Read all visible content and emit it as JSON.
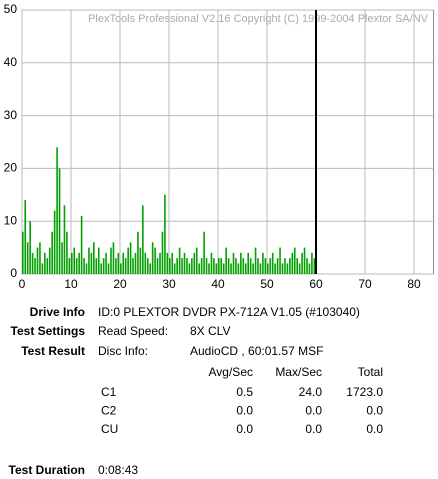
{
  "chart_data": {
    "type": "bar",
    "title": "PlexTools Professional V2.16 Copyright (C) 1999-2004 Plextor SA/NV",
    "x": [
      0,
      0.5,
      1,
      1.5,
      2,
      2.5,
      3,
      3.5,
      4,
      4.5,
      5,
      5.5,
      6,
      6.5,
      7,
      7.5,
      8,
      8.5,
      9,
      9.5,
      10,
      10.5,
      11,
      11.5,
      12,
      12.5,
      13,
      13.5,
      14,
      14.5,
      15,
      15.5,
      16,
      16.5,
      17,
      17.5,
      18,
      18.5,
      19,
      19.5,
      20,
      20.5,
      21,
      21.5,
      22,
      22.5,
      23,
      23.5,
      24,
      24.5,
      25,
      25.5,
      26,
      26.5,
      27,
      27.5,
      28,
      28.5,
      29,
      29.5,
      30,
      30.5,
      31,
      31.5,
      32,
      32.5,
      33,
      33.5,
      34,
      34.5,
      35,
      35.5,
      36,
      36.5,
      37,
      37.5,
      38,
      38.5,
      39,
      39.5,
      40,
      40.5,
      41,
      41.5,
      42,
      42.5,
      43,
      43.5,
      44,
      44.5,
      45,
      45.5,
      46,
      46.5,
      47,
      47.5,
      48,
      48.5,
      49,
      49.5,
      50,
      50.5,
      51,
      51.5,
      52,
      52.5,
      53,
      53.5,
      54,
      54.5,
      55,
      55.5,
      56,
      56.5,
      57,
      57.5,
      58,
      58.5,
      59,
      59.5
    ],
    "values": [
      8,
      14,
      6,
      10,
      4,
      3,
      5,
      6,
      2,
      4,
      3,
      5,
      8,
      12,
      24,
      20,
      6,
      13,
      8,
      3,
      4,
      5,
      3,
      4,
      11,
      3,
      2,
      5,
      4,
      6,
      3,
      5,
      2,
      3,
      4,
      2,
      5,
      6,
      3,
      4,
      2,
      4,
      3,
      5,
      6,
      3,
      4,
      8,
      5,
      13,
      4,
      3,
      2,
      6,
      5,
      3,
      4,
      8,
      15,
      4,
      3,
      4,
      2,
      3,
      5,
      3,
      4,
      3,
      2,
      3,
      4,
      5,
      2,
      3,
      8,
      3,
      2,
      4,
      3,
      2,
      3,
      3,
      2,
      5,
      3,
      2,
      4,
      3,
      2,
      4,
      3,
      2,
      4,
      3,
      2,
      5,
      3,
      2,
      4,
      3,
      2,
      3,
      4,
      2,
      3,
      5,
      2,
      3,
      2,
      3,
      4,
      5,
      3,
      2,
      4,
      5,
      3,
      2,
      4,
      3
    ],
    "color": "#00a000",
    "xlim": [
      0,
      84
    ],
    "ylim": [
      0,
      50
    ],
    "xticks": [
      0,
      10,
      20,
      30,
      40,
      50,
      60,
      70,
      80
    ],
    "yticks": [
      0,
      10,
      20,
      30,
      40,
      50
    ],
    "grid": true,
    "marker_x": 60
  },
  "info": {
    "drive_label": "Drive Info",
    "drive_value": "ID:0 PLEXTOR DVDR PX-712A V1.05 (#103040)",
    "settings_label": "Test Settings",
    "settings_key": "Read Speed:",
    "settings_value": "8X CLV",
    "result_label": "Test Result",
    "result_key": "Disc Info:",
    "result_value": "AudioCD , 60:01.57 MSF",
    "table": {
      "header": [
        "Avg/Sec",
        "Max/Sec",
        "Total"
      ],
      "rows": [
        [
          "C1",
          "0.5",
          "24.0",
          "1723.0"
        ],
        [
          "C2",
          "0.0",
          "0.0",
          "0.0"
        ],
        [
          "CU",
          "0.0",
          "0.0",
          "0.0"
        ]
      ]
    },
    "duration_label": "Test Duration",
    "duration_value": "0:08:43"
  }
}
